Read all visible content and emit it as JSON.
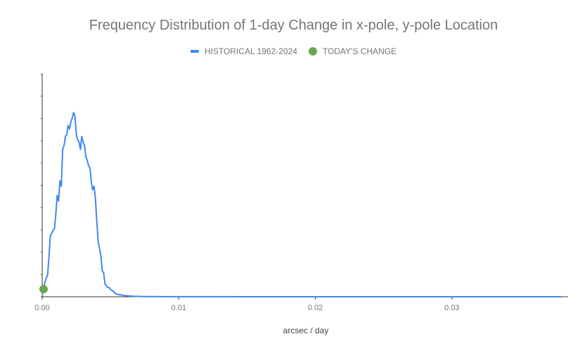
{
  "chart_data": {
    "type": "line",
    "title": "Frequency Distribution of 1-day Change in x-pole, y-pole Location",
    "xlabel": "arcsec / day",
    "ylabel": "",
    "xlim": [
      0,
      0.0385
    ],
    "ylim": [
      0,
      100
    ],
    "y_tick_labels_shown": false,
    "x_ticks": [
      0,
      0.01,
      0.02,
      0.03
    ],
    "x_tick_labels": [
      "0.00",
      "0.01",
      "0.02",
      "0.03"
    ],
    "legend_position": "top",
    "series": [
      {
        "name": "HISTORICAL 1962-2024",
        "color": "#4285f4",
        "x": [
          0,
          0.0002,
          0.0004,
          0.0005,
          0.0006,
          0.0008,
          0.0009,
          0.001,
          0.0011,
          0.0012,
          0.0013,
          0.0014,
          0.0015,
          0.0016,
          0.0017,
          0.0018,
          0.0019,
          0.002,
          0.0021,
          0.0022,
          0.0023,
          0.0024,
          0.0025,
          0.0026,
          0.0027,
          0.0028,
          0.0029,
          0.003,
          0.0031,
          0.0032,
          0.0033,
          0.0034,
          0.0035,
          0.0036,
          0.0037,
          0.0038,
          0.0039,
          0.004,
          0.0041,
          0.0042,
          0.0043,
          0.0044,
          0.0045,
          0.0046,
          0.0047,
          0.0048,
          0.0049,
          0.005,
          0.0052,
          0.0054,
          0.0056,
          0.0058,
          0.006,
          0.0063,
          0.0066,
          0.007,
          0.0075,
          0.008,
          0.009,
          0.01,
          0.012,
          0.015,
          0.02,
          0.025,
          0.03,
          0.035,
          0.038
        ],
        "y": [
          1,
          8,
          12,
          22,
          33,
          36,
          37,
          45,
          55,
          52,
          63,
          60,
          80,
          82,
          87,
          88,
          93,
          91,
          95,
          97,
          100,
          98,
          88,
          85,
          84,
          80,
          87,
          84,
          82,
          76,
          74,
          71,
          70,
          62,
          58,
          60,
          53,
          41,
          30,
          26,
          22,
          14,
          13,
          7,
          6,
          5,
          5,
          4,
          3,
          1.5,
          1.2,
          1,
          0.6,
          0.5,
          0.3,
          0.2,
          0.1,
          0.1,
          0.05,
          0.05,
          0.03,
          0.02,
          0.02,
          0.02,
          0.01,
          0.01,
          0.01
        ]
      },
      {
        "name": "TODAY'S CHANGE",
        "color": "#6aa84f",
        "x": [
          0.0001
        ],
        "y": [
          4.5
        ]
      }
    ]
  }
}
